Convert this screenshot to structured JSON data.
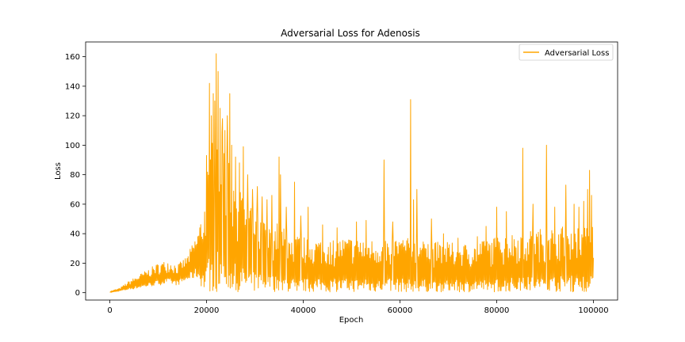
{
  "chart_data": {
    "type": "line",
    "title": "Adversarial Loss for Adenosis",
    "xlabel": "Epoch",
    "ylabel": "Loss",
    "xlim": [
      -5000,
      105000
    ],
    "ylim": [
      -5,
      170
    ],
    "xticks": [
      0,
      20000,
      40000,
      60000,
      80000,
      100000
    ],
    "yticks": [
      0,
      20,
      40,
      60,
      80,
      100,
      120,
      140,
      160
    ],
    "grid": false,
    "legend_position": "top-right",
    "series": [
      {
        "name": "Adversarial Loss",
        "color": "#ffa500",
        "envelope_x": [
          0,
          2000,
          4000,
          6000,
          8000,
          10000,
          12000,
          14000,
          16000,
          18000,
          19500,
          20500,
          21500,
          22500,
          23500,
          25000,
          27000,
          29000,
          31000,
          33000,
          35000,
          37000,
          40000,
          45000,
          50000,
          55000,
          60000,
          65000,
          70000,
          75000,
          80000,
          85000,
          90000,
          95000,
          100000
        ],
        "envelope_high": [
          1,
          3,
          8,
          12,
          16,
          20,
          22,
          19,
          25,
          40,
          60,
          95,
          110,
          118,
          105,
          85,
          70,
          58,
          52,
          46,
          48,
          40,
          38,
          36,
          38,
          36,
          38,
          35,
          34,
          33,
          38,
          42,
          44,
          46,
          45
        ],
        "envelope_low": [
          0,
          1,
          2,
          3,
          4,
          5,
          6,
          5,
          8,
          10,
          0.5,
          0.5,
          0.5,
          0.5,
          0.5,
          0.5,
          0.5,
          0.5,
          0.5,
          0.5,
          0.5,
          0.5,
          0.5,
          0.5,
          0.5,
          0.5,
          0.5,
          0.5,
          0.5,
          0.5,
          0.5,
          0.5,
          0.5,
          0.5,
          0.5
        ],
        "spikes": [
          [
            20000,
            93
          ],
          [
            20600,
            142
          ],
          [
            21000,
            120
          ],
          [
            21400,
            135
          ],
          [
            21700,
            130
          ],
          [
            22000,
            162
          ],
          [
            22400,
            150
          ],
          [
            22800,
            125
          ],
          [
            23300,
            118
          ],
          [
            23800,
            110
          ],
          [
            24300,
            120
          ],
          [
            24800,
            135
          ],
          [
            25200,
            100
          ],
          [
            26000,
            92
          ],
          [
            26800,
            88
          ],
          [
            27600,
            99
          ],
          [
            28500,
            80
          ],
          [
            29500,
            70
          ],
          [
            30500,
            72
          ],
          [
            31500,
            65
          ],
          [
            32500,
            63
          ],
          [
            33500,
            66
          ],
          [
            35000,
            92
          ],
          [
            35300,
            80
          ],
          [
            36500,
            58
          ],
          [
            38200,
            75
          ],
          [
            39500,
            52
          ],
          [
            41000,
            58
          ],
          [
            44000,
            46
          ],
          [
            47000,
            44
          ],
          [
            51000,
            48
          ],
          [
            53000,
            49
          ],
          [
            56700,
            90
          ],
          [
            58500,
            48
          ],
          [
            62200,
            131
          ],
          [
            62800,
            63
          ],
          [
            63500,
            70
          ],
          [
            66500,
            50
          ],
          [
            69000,
            40
          ],
          [
            72000,
            37
          ],
          [
            76000,
            38
          ],
          [
            77800,
            45
          ],
          [
            80000,
            58
          ],
          [
            82000,
            55
          ],
          [
            85400,
            98
          ],
          [
            87500,
            60
          ],
          [
            90300,
            100
          ],
          [
            92000,
            58
          ],
          [
            94300,
            73
          ],
          [
            96000,
            60
          ],
          [
            97000,
            58
          ],
          [
            98000,
            62
          ],
          [
            98800,
            70
          ],
          [
            99200,
            83
          ],
          [
            99600,
            66
          ]
        ]
      }
    ]
  }
}
